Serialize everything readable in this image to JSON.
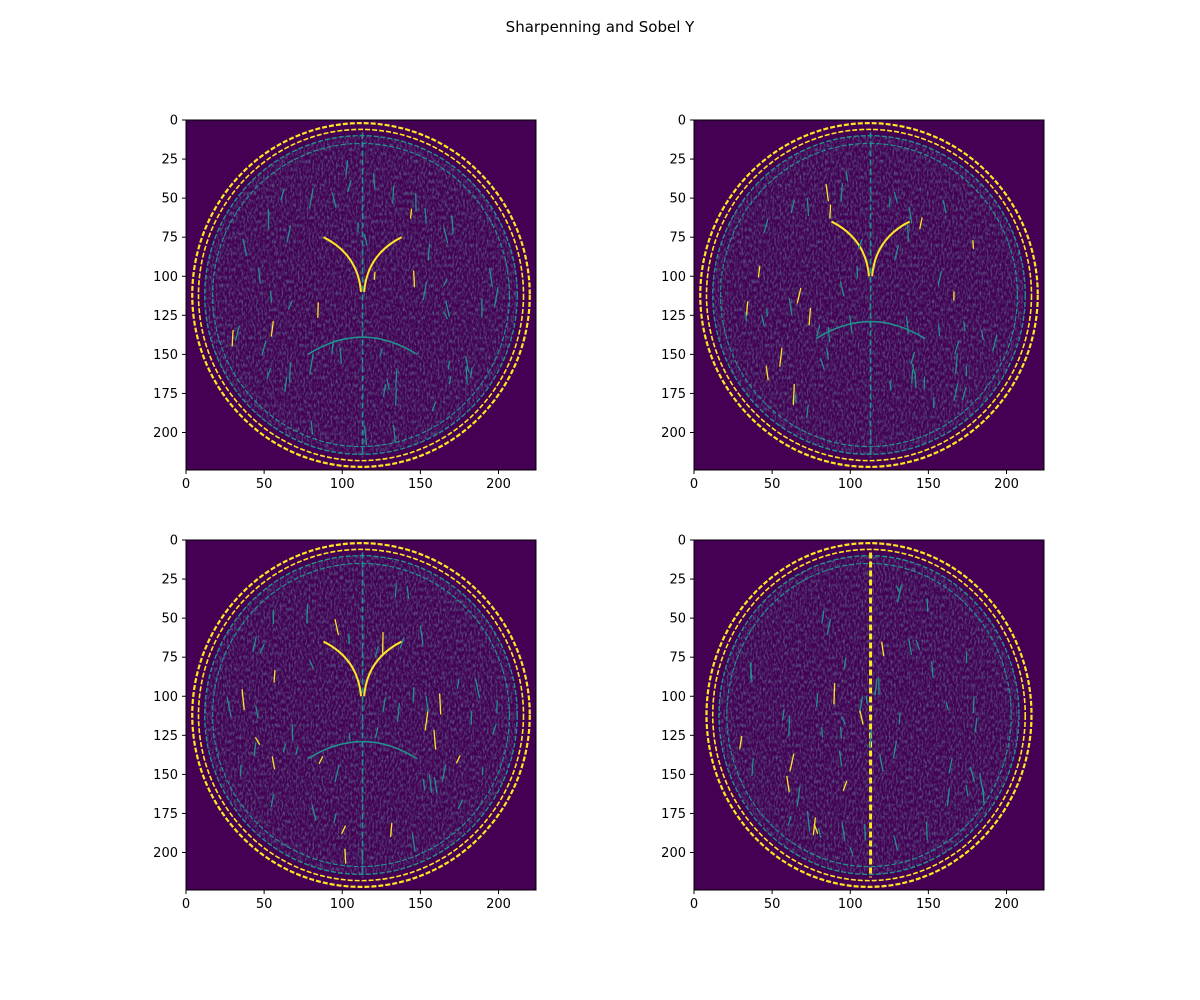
{
  "figure": {
    "suptitle": "Sharpenning and Sobel Y"
  },
  "colors": {
    "colormap": "viridis",
    "background": "#440154",
    "mid": "#21918c",
    "high": "#fde725"
  },
  "chart_data": [
    {
      "type": "heatmap",
      "content": "axial brain MRI slice, Sobel Y edge map (skull rings, ventricles)",
      "colormap": "viridis",
      "xlim": [
        0,
        224
      ],
      "ylim": [
        224,
        0
      ],
      "xticks": [
        0,
        50,
        100,
        150,
        200
      ],
      "yticks": [
        0,
        25,
        50,
        75,
        100,
        125,
        150,
        175,
        200
      ],
      "grid": false
    },
    {
      "type": "heatmap",
      "content": "axial brain MRI slice, Sobel Y edge map (lateral ventricles, sulci)",
      "colormap": "viridis",
      "xlim": [
        0,
        224
      ],
      "ylim": [
        224,
        0
      ],
      "xticks": [
        0,
        50,
        100,
        150,
        200
      ],
      "yticks": [
        0,
        25,
        50,
        75,
        100,
        125,
        150,
        175,
        200
      ],
      "grid": false
    },
    {
      "type": "heatmap",
      "content": "axial brain MRI slice, Sobel Y edge map (ventricles, midline)",
      "colormap": "viridis",
      "xlim": [
        0,
        224
      ],
      "ylim": [
        224,
        0
      ],
      "xticks": [
        0,
        50,
        100,
        150,
        200
      ],
      "yticks": [
        0,
        25,
        50,
        75,
        100,
        125,
        150,
        175,
        200
      ],
      "grid": false
    },
    {
      "type": "heatmap",
      "content": "axial brain MRI slice, Sobel Y edge map (midline fissure)",
      "colormap": "viridis",
      "xlim": [
        0,
        224
      ],
      "ylim": [
        224,
        0
      ],
      "xticks": [
        0,
        50,
        100,
        150,
        200
      ],
      "yticks": [
        0,
        25,
        50,
        75,
        100,
        125,
        150,
        175,
        200
      ],
      "grid": false
    }
  ]
}
